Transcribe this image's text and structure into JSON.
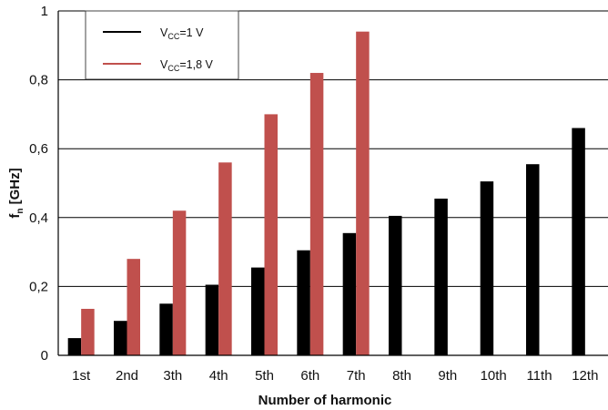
{
  "chart_data": {
    "type": "bar",
    "title": "",
    "xlabel": "Number of harmonic",
    "ylabel": {
      "main": "f",
      "sub": "n",
      "rest": " [GHz]"
    },
    "ylim": [
      0,
      1
    ],
    "yticks": [
      {
        "value": 0,
        "label": "0"
      },
      {
        "value": 0.2,
        "label": "0,2"
      },
      {
        "value": 0.4,
        "label": "0,4"
      },
      {
        "value": 0.6,
        "label": "0,6"
      },
      {
        "value": 0.8,
        "label": "0,8"
      },
      {
        "value": 1,
        "label": "1"
      }
    ],
    "grid": true,
    "legend_position": "top-left",
    "categories": [
      "1st",
      "2nd",
      "3th",
      "4th",
      "5th",
      "6th",
      "7th",
      "8th",
      "9th",
      "10th",
      "11th",
      "12th"
    ],
    "series": [
      {
        "label": {
          "main": "V",
          "sub": "CC",
          "rest": "=1 V"
        },
        "color": "#000000",
        "values": [
          0.05,
          0.1,
          0.15,
          0.205,
          0.255,
          0.305,
          0.355,
          0.405,
          0.455,
          0.505,
          0.555,
          0.66
        ]
      },
      {
        "label": {
          "main": "V",
          "sub": "CC",
          "rest": "=1,8 V"
        },
        "color": "#c0504d",
        "values": [
          0.135,
          0.28,
          0.42,
          0.56,
          0.7,
          0.82,
          0.94,
          null,
          null,
          null,
          null,
          null
        ]
      }
    ]
  }
}
